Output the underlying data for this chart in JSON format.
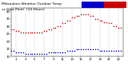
{
  "title": "Milwaukee Weather Outdoor Temp",
  "title2": "vs Dew Point  (24 Hours)",
  "title_fontsize": 3.2,
  "bg_color": "#ffffff",
  "plot_bg": "#ffffff",
  "temp_color": "#cc0000",
  "dew_color": "#0000cc",
  "grid_color": "#bbbbbb",
  "colorbar_blue": "#0000cc",
  "colorbar_red": "#cc0000",
  "temp_x": [
    0,
    0.5,
    1,
    1.5,
    2,
    2.5,
    3,
    3.5,
    4,
    4.5,
    5,
    5.5,
    6,
    6.5,
    7,
    7.5,
    8,
    8.5,
    9,
    9.5,
    10,
    10.5,
    11,
    11.5,
    12,
    12.5,
    13,
    13.5,
    14,
    14.5,
    15,
    15.5,
    16,
    16.5,
    17,
    17.5,
    18,
    18.5,
    19,
    19.5,
    20,
    20.5,
    21,
    21.5,
    22,
    22.5,
    23,
    23.5
  ],
  "temp_y": [
    28,
    28,
    27,
    27,
    26,
    26,
    26,
    26,
    26,
    26,
    26,
    26,
    26,
    26,
    27,
    27,
    28,
    28,
    29,
    29,
    30,
    30,
    32,
    32,
    34,
    34,
    36,
    36,
    37,
    37,
    38,
    38,
    38,
    38,
    37,
    37,
    35,
    35,
    34,
    34,
    33,
    33,
    32,
    32,
    30,
    30,
    29,
    29
  ],
  "dew_x": [
    0,
    0.5,
    1,
    1.5,
    2,
    2.5,
    3,
    3.5,
    4,
    4.5,
    5,
    5.5,
    6,
    6.5,
    7,
    7.5,
    8,
    8.5,
    9,
    9.5,
    10,
    10.5,
    11,
    11.5,
    12,
    12.5,
    13,
    13.5,
    14,
    14.5,
    15,
    15.5,
    16,
    16.5,
    17,
    17.5,
    18,
    18.5,
    19,
    19.5,
    20,
    20.5,
    21,
    21.5,
    22,
    22.5,
    23,
    23.5
  ],
  "dew_y": [
    14,
    14,
    13,
    13,
    13,
    13,
    12,
    12,
    12,
    12,
    12,
    12,
    12,
    12,
    12,
    12,
    13,
    13,
    13,
    13,
    13,
    13,
    13,
    13,
    14,
    14,
    14,
    14,
    15,
    15,
    15,
    15,
    15,
    15,
    15,
    15,
    15,
    15,
    14,
    14,
    14,
    14,
    14,
    14,
    14,
    14,
    14,
    14
  ],
  "ylim": [
    10,
    42
  ],
  "xlim": [
    0,
    24
  ],
  "yticks": [
    10,
    15,
    20,
    25,
    30,
    35,
    40
  ],
  "xtick_positions": [
    1,
    3,
    5,
    7,
    9,
    11,
    13,
    15,
    17,
    19,
    21,
    23
  ],
  "xtick_labels": [
    "1",
    "3",
    "5",
    "7",
    "9",
    "11",
    "13",
    "15",
    "17",
    "19",
    "21",
    "23"
  ],
  "tick_fontsize": 2.8,
  "dot_size": 1.2,
  "vline_positions": [
    1,
    3,
    5,
    7,
    9,
    11,
    13,
    15,
    17,
    19,
    21,
    23
  ]
}
